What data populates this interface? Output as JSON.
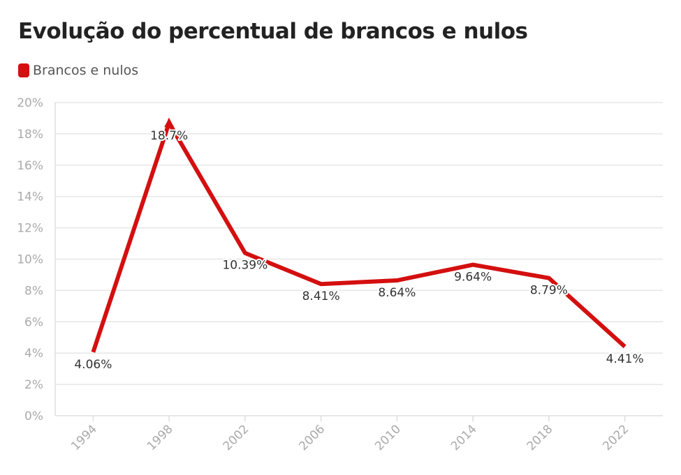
{
  "title": "Evolução do percentual de brancos e nulos",
  "colors": {
    "series": "#d40f0f",
    "grid": "#e6e6e6",
    "axis": "#dddddd"
  },
  "chart_data": {
    "type": "line",
    "title": "Evolução do percentual de brancos e nulos",
    "xlabel": "",
    "ylabel": "",
    "categories": [
      "1994",
      "1998",
      "2002",
      "2006",
      "2010",
      "2014",
      "2018",
      "2022"
    ],
    "series": [
      {
        "name": "Brancos e nulos",
        "values": [
          4.06,
          18.7,
          10.39,
          8.41,
          8.64,
          9.64,
          8.79,
          4.41
        ],
        "labels": [
          "4.06%",
          "18.7%",
          "10.39%",
          "8.41%",
          "8.64%",
          "9.64%",
          "8.79%",
          "4.41%"
        ]
      }
    ],
    "ylim": [
      0,
      20
    ],
    "yticks": [
      0,
      2,
      4,
      6,
      8,
      10,
      12,
      14,
      16,
      18,
      20
    ],
    "ytick_labels": [
      "0%",
      "2%",
      "4%",
      "6%",
      "8%",
      "10%",
      "12%",
      "14%",
      "16%",
      "18%",
      "20%"
    ],
    "grid": true,
    "legend_position": "top-left"
  }
}
